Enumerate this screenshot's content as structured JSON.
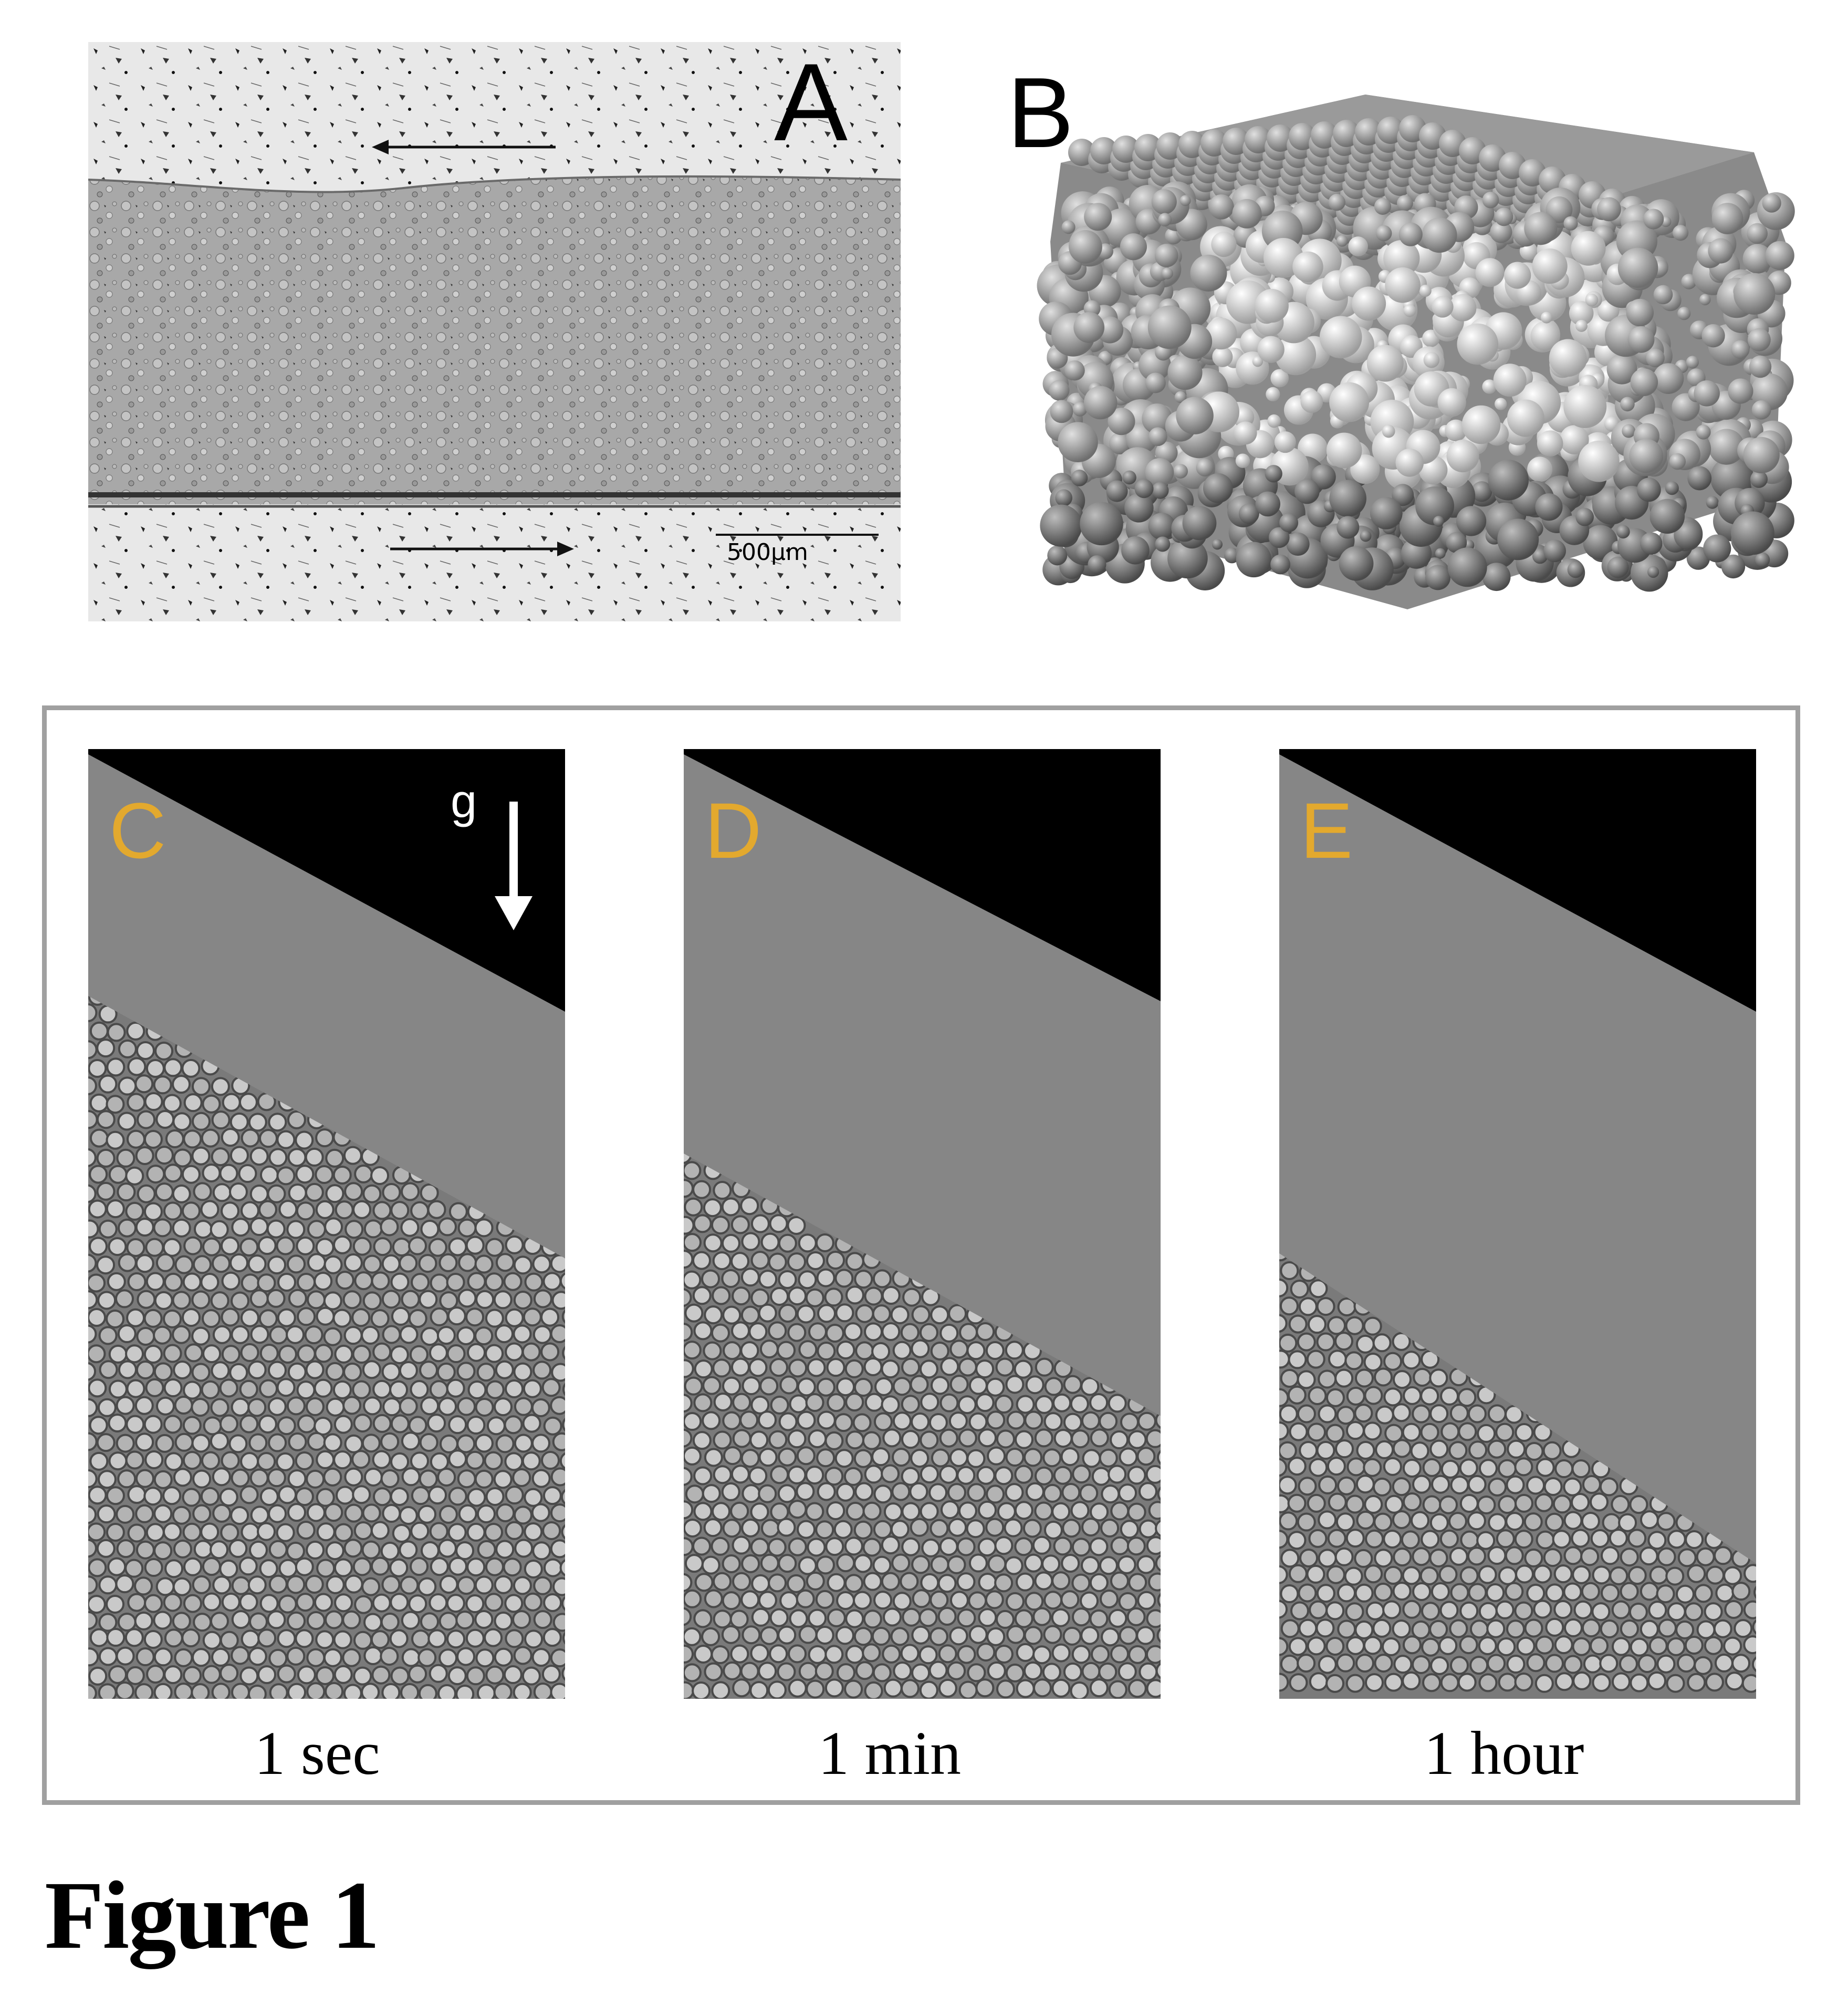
{
  "panel_a": {
    "letter": "A",
    "scale_bar_label": "500µm"
  },
  "panel_b": {
    "letter": "B"
  },
  "panels": [
    {
      "letter": "C",
      "caption": "1 sec"
    },
    {
      "letter": "D",
      "caption": "1 min"
    },
    {
      "letter": "E",
      "caption": "1 hour"
    }
  ],
  "gravity_label": "g",
  "figure_title": "Figure 1",
  "colors": {
    "panel_letter": "#e3a92e",
    "frame": "#a0a0a0"
  }
}
